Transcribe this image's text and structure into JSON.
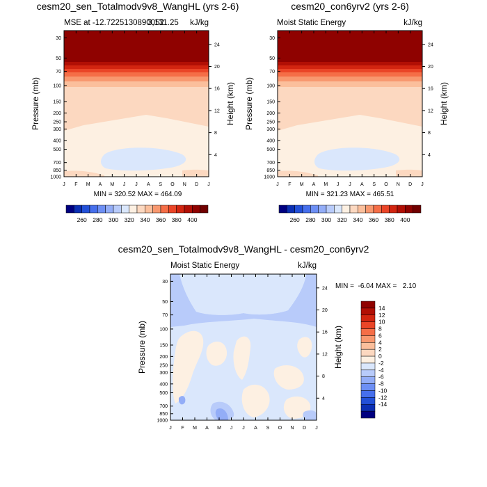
{
  "colors": {
    "sharedScale": [
      "#000080",
      "#0b2fb4",
      "#2250d8",
      "#466fec",
      "#6d8ff4",
      "#93adf7",
      "#b8cbfa",
      "#dae7fc",
      "#fdf0e2",
      "#fcd8c0",
      "#fbbf9c",
      "#f8986f",
      "#f56e47",
      "#ea4527",
      "#d22510",
      "#b10f05",
      "#8f0200",
      "#700000"
    ],
    "diffScale": [
      "#000080",
      "#0b2fb4",
      "#2250d8",
      "#466fec",
      "#6d8ff4",
      "#93adf7",
      "#b8cbfa",
      "#dae7fc",
      "#fdf0e2",
      "#fcd8c0",
      "#fbbf9c",
      "#f8986f",
      "#f56e47",
      "#ea4527",
      "#d22510",
      "#b10f05",
      "#8f0200"
    ]
  },
  "chart_data": [
    {
      "type": "heatmap",
      "title": "cesm20_sen_Totalmodv9v8_WangHL (yrs 2-6)",
      "left_label": "MSE at -12.7225130890052",
      "center_label": "3,131.25",
      "units": "kJ/kg",
      "ylabel": "Pressure (mb)",
      "ylabel_right": "Height (km)",
      "months": [
        "J",
        "F",
        "M",
        "A",
        "M",
        "J",
        "J",
        "A",
        "S",
        "O",
        "N",
        "D",
        "J"
      ],
      "pressure_ticks": [
        30,
        50,
        70,
        100,
        150,
        200,
        250,
        300,
        400,
        500,
        700,
        850,
        1000
      ],
      "height_ticks": [
        24,
        20,
        16,
        12,
        8,
        4
      ],
      "stats": "MIN = 320.52 MAX = 464.09",
      "levels": [
        260,
        280,
        300,
        320,
        340,
        360,
        380,
        400
      ],
      "colorbar_labels": [
        "260",
        "280",
        "300",
        "320",
        "340",
        "360",
        "380",
        "400"
      ],
      "bands": [
        {
          "value": "> 400",
          "p_top": 25,
          "p_bottom": 52
        },
        {
          "value": "390-400",
          "p_top": 52,
          "p_bottom": 60
        },
        {
          "value": "380-390",
          "p_top": 60,
          "p_bottom": 68
        },
        {
          "value": "370-380",
          "p_top": 68,
          "p_bottom": 77
        },
        {
          "value": "360-370",
          "p_top": 77,
          "p_bottom": 88
        },
        {
          "value": "350-360",
          "p_top": 88,
          "p_bottom": 100
        },
        {
          "value": "340-350",
          "p_top": 100,
          "p_bottom": 120
        },
        {
          "value": "330-340",
          "p_top": 120,
          "p_bottom": 300
        },
        {
          "value": "320-330",
          "p_top": 300,
          "p_bottom": 1000
        }
      ]
    },
    {
      "type": "heatmap",
      "title": "cesm20_con6yrv2 (yrs 2-6)",
      "left_label": "Moist Static Energy",
      "units": "kJ/kg",
      "ylabel": "Pressure (mb)",
      "ylabel_right": "Height (km)",
      "months": [
        "J",
        "F",
        "M",
        "A",
        "M",
        "J",
        "J",
        "A",
        "S",
        "O",
        "N",
        "D",
        "J"
      ],
      "pressure_ticks": [
        30,
        50,
        70,
        100,
        150,
        200,
        250,
        300,
        400,
        500,
        700,
        850,
        1000
      ],
      "height_ticks": [
        24,
        20,
        16,
        12,
        8,
        4
      ],
      "stats": "MIN = 321.23 MAX = 465.51",
      "levels": [
        260,
        280,
        300,
        320,
        340,
        360,
        380,
        400
      ],
      "colorbar_labels": [
        "260",
        "280",
        "300",
        "320",
        "340",
        "360",
        "380",
        "400"
      ]
    },
    {
      "type": "heatmap",
      "title": "cesm20_sen_Totalmodv9v8_WangHL - cesm20_con6yrv2",
      "left_label": "Moist Static Energy",
      "units": "kJ/kg",
      "ylabel": "Pressure (mb)",
      "ylabel_right": "Height (km)",
      "months": [
        "J",
        "F",
        "M",
        "A",
        "M",
        "J",
        "J",
        "A",
        "S",
        "O",
        "N",
        "D",
        "J"
      ],
      "pressure_ticks": [
        30,
        50,
        70,
        100,
        150,
        200,
        250,
        300,
        400,
        500,
        700,
        850,
        1000
      ],
      "height_ticks": [
        24,
        20,
        16,
        12,
        8,
        4
      ],
      "stats": "MIN =  -6.04 MAX =   2.10",
      "levels": [
        -14,
        -12,
        -10,
        -8,
        -6,
        -4,
        -2,
        0,
        2,
        4,
        6,
        8,
        10,
        12,
        14
      ],
      "colorbar_labels": [
        "14",
        "12",
        "10",
        "8",
        "6",
        "4",
        "2",
        "0",
        "-2",
        "-4",
        "-6",
        "-8",
        "-10",
        "-12",
        "-14"
      ]
    }
  ]
}
